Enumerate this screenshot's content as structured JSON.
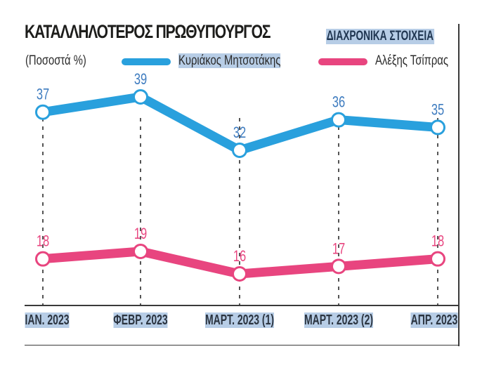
{
  "header": {
    "title": "ΚΑΤΑΛΛΗΛΟΤΕΡΟΣ ΠΡΩΘΥΠΟΥΡΓΟΣ",
    "subtitle": "ΔΙΑΧΡΟΝΙΚΑ ΣΤΟΙΧΕΙΑ",
    "unit": "(Ποσοστά %)"
  },
  "legend": [
    {
      "name": "Κυριάκος Μητσοτάκης",
      "color": "#29a0dd"
    },
    {
      "name": "Αλέξης Τσίπρας",
      "color": "#e8457f"
    }
  ],
  "xaxis": {
    "labels": [
      "ΙΑΝ. 2023",
      "ΦΕΒΡ. 2023",
      "ΜΑΡΤ. 2023 (1)",
      "ΜΑΡΤ. 2023 (2)",
      "ΑΠΡ. 2023"
    ]
  },
  "colors": {
    "blue": "#29a0dd",
    "pink": "#e8457f",
    "blue_label": "#3d7bbf",
    "pink_label": "#e8457f",
    "highlight": "#b7cde6"
  },
  "chart_data": {
    "type": "line",
    "title": "ΚΑΤΑΛΛΗΛΟΤΕΡΟΣ ΠΡΩΘΥΠΟΥΡΓΟΣ",
    "subtitle": "ΔΙΑΧΡΟΝΙΚΑ ΣΤΟΙΧΕΙΑ",
    "ylabel": "(Ποσοστά %)",
    "xlabel": "",
    "categories": [
      "ΙΑΝ. 2023",
      "ΦΕΒΡ. 2023",
      "ΜΑΡΤ. 2023 (1)",
      "ΜΑΡΤ. 2023 (2)",
      "ΑΠΡ. 2023"
    ],
    "series": [
      {
        "name": "Κυριάκος Μητσοτάκης",
        "values": [
          37,
          39,
          32,
          36,
          35
        ],
        "color": "#29a0dd"
      },
      {
        "name": "Αλέξης Τσίπρας",
        "values": [
          18,
          19,
          16,
          17,
          18
        ],
        "color": "#e8457f"
      }
    ],
    "grid": false,
    "legend_position": "top",
    "data_labels": true
  }
}
